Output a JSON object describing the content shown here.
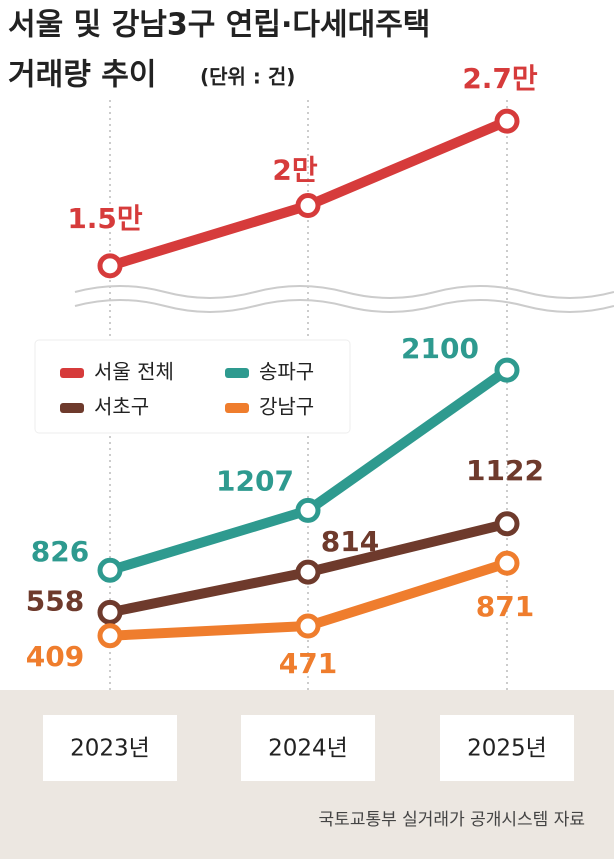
{
  "chart_data": {
    "type": "line",
    "title": "서울 및 강남3구 연립·다세대주택",
    "subtitle": "거래량 추이",
    "unit": "(단위 : 건)",
    "categories": [
      "2023년",
      "2024년",
      "2025년"
    ],
    "series": [
      {
        "name": "서울 전체",
        "color": "#d63b3b",
        "axis": "y2",
        "values": [
          15000,
          20000,
          27000
        ],
        "value_labels": [
          "1.5만",
          "2만",
          "2.7만"
        ]
      },
      {
        "name": "송파구",
        "color": "#2e9a8f",
        "values": [
          826,
          1207,
          2100
        ]
      },
      {
        "name": "서초구",
        "color": "#6e3a2c",
        "values": [
          558,
          814,
          1122
        ]
      },
      {
        "name": "강남구",
        "color": "#ef7d2d",
        "values": [
          409,
          471,
          871
        ]
      }
    ],
    "ylim": [
      0,
      2400
    ],
    "y2lim": [
      12000,
      30000
    ],
    "source": "국토교통부 실거래가 공개시스템 자료"
  }
}
